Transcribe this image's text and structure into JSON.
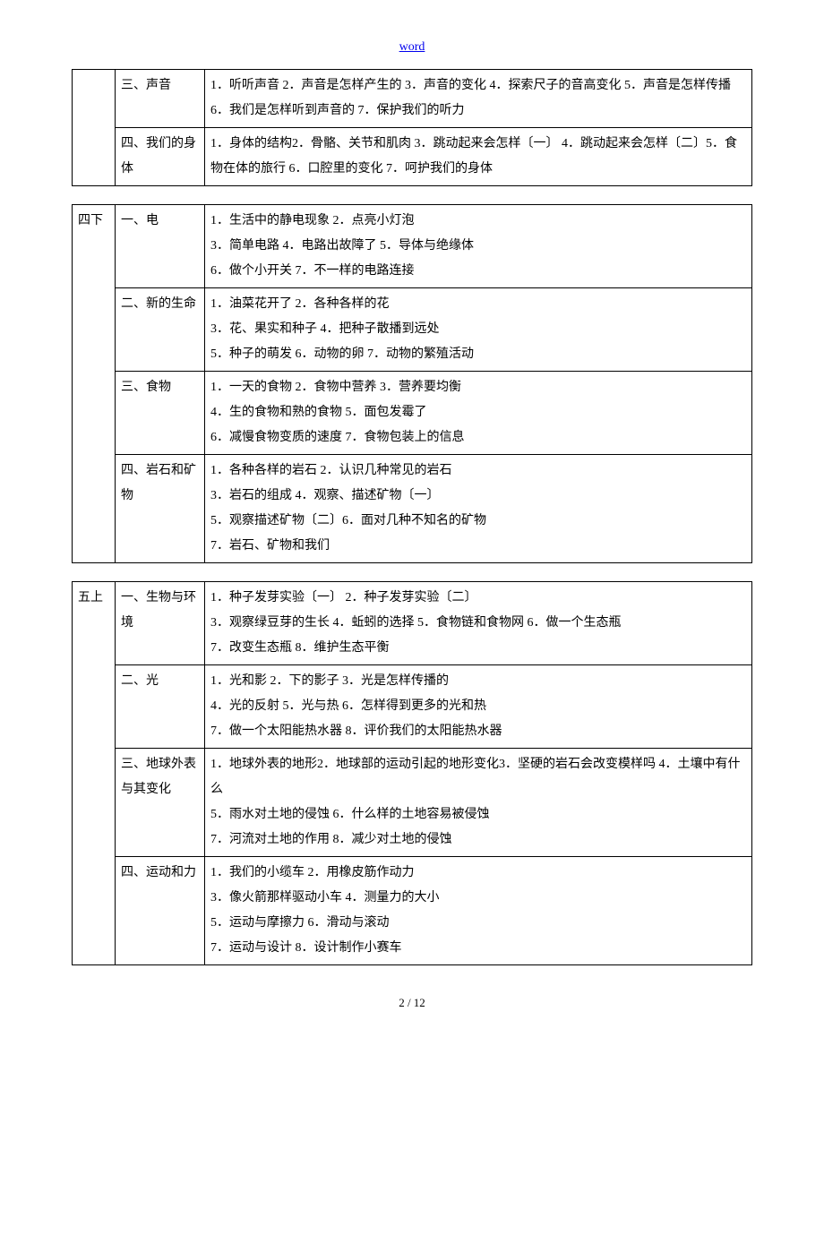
{
  "header": {
    "link_text": "word"
  },
  "table1": {
    "rows": [
      {
        "grade": "",
        "unit": "三、声音",
        "content": "1．听听声音 2．声音是怎样产生的  3．声音的变化  4．探索尺子的音高变化 5．声音是怎样传播 6．我们是怎样听到声音的   7．保护我们的听力"
      },
      {
        "grade": "",
        "unit": "四、我们的身体",
        "content": "1．身体的结构2．骨骼、关节和肌肉  3．跳动起来会怎样〔一〕   4．跳动起来会怎样〔二〕5．食物在体的旅行  6．口腔里的变化   7．呵护我们的身体"
      }
    ]
  },
  "table2": {
    "grade": "四下",
    "rows": [
      {
        "unit": "一、电",
        "content": "1．生活中的静电现象  2．点亮小灯泡\n3．简单电路   4．电路出故障了  5．导体与绝缘体\n6．做个小开关    7．不一样的电路连接"
      },
      {
        "unit": "二、新的生命",
        "content": "1．油菜花开了    2．各种各样的花\n3．花、果实和种子  4．把种子散播到远处\n5．种子的萌发    6．动物的卵   7．动物的繁殖活动"
      },
      {
        "unit": "三、食物",
        "content": "1．一天的食物  2．食物中营养  3．营养要均衡\n4．生的食物和熟的食物  5．面包发霉了\n6．减慢食物变质的速度   7．食物包装上的信息"
      },
      {
        "unit": "四、岩石和矿物",
        "content": "1．各种各样的岩石    2．认识几种常见的岩石\n3．岩石的组成   4．观察、描述矿物〔一〕\n5．观察描述矿物〔二〕6．面对几种不知名的矿物\n7．岩石、矿物和我们"
      }
    ]
  },
  "table3": {
    "grade": "五上",
    "rows": [
      {
        "unit": "一、生物与环境",
        "content": "1．种子发芽实验〔一〕  2．种子发芽实验〔二〕\n3．观察绿豆芽的生长   4．蚯蚓的选择   5．食物链和食物网   6．做一个生态瓶\n7．改变生态瓶        8．维护生态平衡"
      },
      {
        "unit": "二、光",
        "content": "1．光和影    2．下的影子  3．光是怎样传播的\n4．光的反射     5．光与热  6．怎样得到更多的光和热\n7．做一个太阳能热水器   8．评价我们的太阳能热水器"
      },
      {
        "unit": "三、地球外表与其变化",
        "content": "1．地球外表的地形2．地球部的运动引起的地形变化3．坚硬的岩石会改变模样吗    4．土壤中有什么\n5．雨水对土地的侵蚀   6．什么样的土地容易被侵蚀\n7．河流对土地的作用   8．减少对土地的侵蚀"
      },
      {
        "unit": "四、运动和力",
        "content": "1．我们的小缆车   2．用橡皮筋作动力\n3．像火箭那样驱动小车   4．测量力的大小\n5．运动与摩擦力 6．滑动与滚动\n7．运动与设计  8．设计制作小赛车"
      }
    ]
  },
  "footer": {
    "page": "2 / 12"
  }
}
